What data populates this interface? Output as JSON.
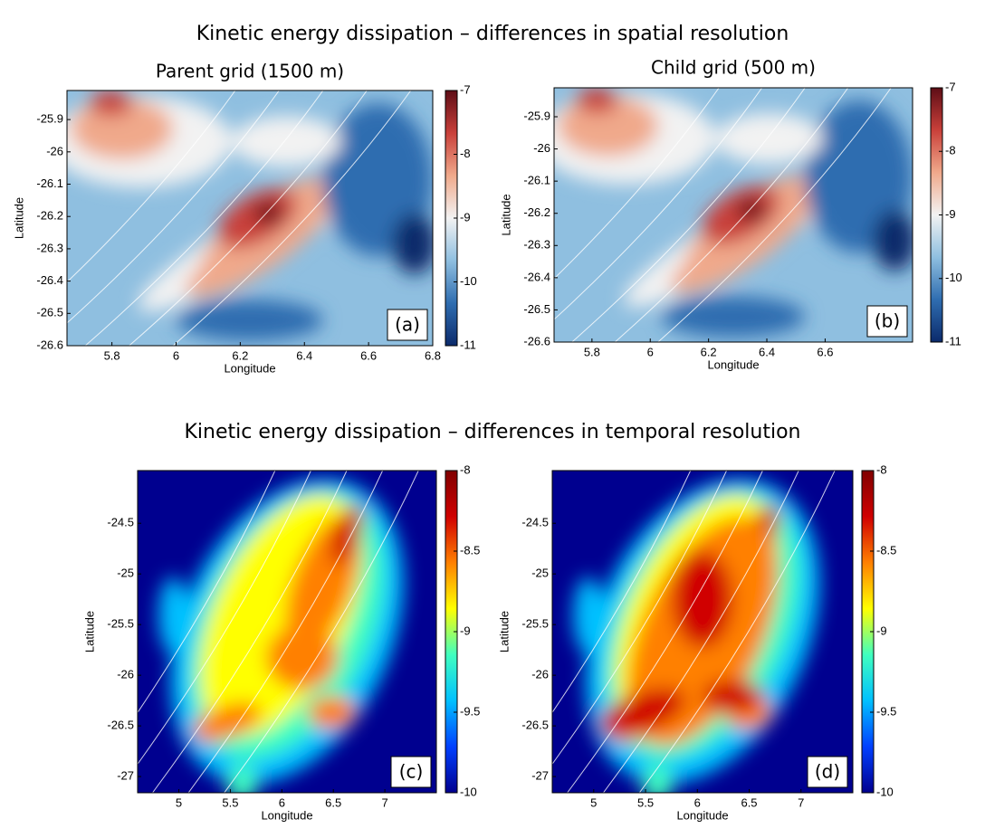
{
  "titles": [
    "Kinetic energy dissipation – differences in spatial resolution",
    "Kinetic energy dissipation – differences in temporal resolution"
  ],
  "chart_data": [
    {
      "type": "contour",
      "title": "Parent grid (1500 m)",
      "panel_label": "(a)",
      "x_label": "Longitude",
      "y_label": "Latitude",
      "xlim": [
        5.66,
        6.8
      ],
      "xticks": [
        5.8,
        6,
        6.2,
        6.4,
        6.6,
        6.8
      ],
      "ylim": [
        -26.6,
        -25.81
      ],
      "yticks": [
        -25.9,
        -26,
        -26.1,
        -26.2,
        -26.3,
        -26.4,
        -26.5,
        -26.6
      ],
      "colorbar": {
        "lim": [
          -11,
          -7
        ],
        "ticks": [
          -7,
          -8,
          -9,
          -10,
          -11
        ],
        "colors": [
          "#0b2a6b",
          "#2f6db0",
          "#8fbfe0",
          "#f2f2f2",
          "#f0a98b",
          "#c9403a",
          "#5e0d16"
        ]
      }
    },
    {
      "type": "contour",
      "title": "Child grid (500 m)",
      "panel_label": "(b)",
      "x_label": "Longitude",
      "y_label": "Latitude",
      "xlim": [
        5.67,
        6.9
      ],
      "xticks": [
        5.8,
        6,
        6.2,
        6.4,
        6.6
      ],
      "ylim": [
        -26.6,
        -25.81
      ],
      "yticks": [
        -25.9,
        -26,
        -26.1,
        -26.2,
        -26.3,
        -26.4,
        -26.5,
        -26.6
      ],
      "colorbar": {
        "lim": [
          -11,
          -7
        ],
        "ticks": [
          -7,
          -8,
          -9,
          -10,
          -11
        ],
        "colors": [
          "#0b2a6b",
          "#2f6db0",
          "#8fbfe0",
          "#f2f2f2",
          "#f0a98b",
          "#c9403a",
          "#5e0d16"
        ]
      }
    },
    {
      "type": "contour",
      "panel_label": "(c)",
      "x_label": "Longitude",
      "y_label": "Latitude",
      "xlim": [
        4.6,
        7.5
      ],
      "xticks": [
        5,
        5.5,
        6,
        6.5,
        7
      ],
      "ylim": [
        -27.16,
        -23.98
      ],
      "yticks": [
        -24.5,
        -25,
        -25.5,
        -26,
        -26.5,
        -27
      ],
      "colorbar": {
        "lim": [
          -10,
          -8
        ],
        "ticks": [
          -8,
          -8.5,
          -9,
          -9.5,
          -10
        ],
        "colors": [
          "#00008f",
          "#0040ff",
          "#00c0ff",
          "#40ffbf",
          "#ffff00",
          "#ff8000",
          "#d00000",
          "#800000"
        ]
      }
    },
    {
      "type": "contour",
      "panel_label": "(d)",
      "x_label": "Longitude",
      "y_label": "Latitude",
      "xlim": [
        4.6,
        7.5
      ],
      "xticks": [
        5,
        5.5,
        6,
        6.5,
        7
      ],
      "ylim": [
        -27.16,
        -23.98
      ],
      "yticks": [
        -24.5,
        -25,
        -25.5,
        -26,
        -26.5,
        -27
      ],
      "colorbar": {
        "lim": [
          -10,
          -8
        ],
        "ticks": [
          -8,
          -8.5,
          -9,
          -9.5,
          -10
        ],
        "colors": [
          "#00008f",
          "#0040ff",
          "#00c0ff",
          "#40ffbf",
          "#ffff00",
          "#ff8000",
          "#d00000",
          "#800000"
        ]
      }
    }
  ]
}
